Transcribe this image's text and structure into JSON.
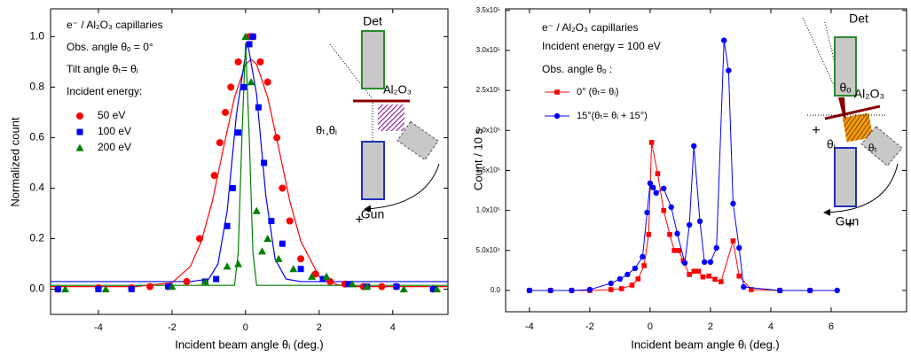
{
  "chart_data": [
    {
      "type": "scatter",
      "legend_title": [
        "e⁻ / Al₂O₃ capillaries",
        "Obs. angle θₒ = 0°",
        "Tilt angle θₜ= θᵢ",
        "Incident energy:"
      ],
      "xlabel": "Incident beam angle θᵢ (deg.)",
      "ylabel": "Normalized count",
      "xlim": [
        -5.3,
        5.5
      ],
      "ylim": [
        -0.1,
        1.11
      ],
      "xticks": [
        -4,
        -2,
        0,
        2,
        4
      ],
      "yticks": [
        {
          "value": 0,
          "label": "0.0"
        },
        {
          "value": 0.2,
          "label": "0.2"
        },
        {
          "value": 0.4,
          "label": "0.4"
        },
        {
          "value": 0.6,
          "label": "0.6"
        },
        {
          "value": 0.8,
          "label": "0.8"
        },
        {
          "value": 1,
          "label": "1.0"
        }
      ],
      "series": [
        {
          "name": "50 eV",
          "color": "#ff0000",
          "marker": "circle",
          "x": [
            -5.1,
            -4.0,
            -3.1,
            -2.6,
            -2.1,
            -1.6,
            -1.25,
            -0.85,
            -0.7,
            -0.55,
            -0.4,
            -0.2,
            0.1,
            0.2,
            0.4,
            0.6,
            0.85,
            1.0,
            1.2,
            1.5,
            1.9,
            2.3,
            2.7,
            3.2,
            3.7,
            4.1,
            5.1
          ],
          "values": [
            0,
            0.005,
            0.005,
            0.01,
            0.01,
            0.03,
            0.2,
            0.45,
            0.58,
            0.7,
            0.8,
            0.9,
            1.0,
            1.0,
            0.9,
            0.82,
            0.6,
            0.4,
            0.27,
            0.12,
            0.06,
            0.03,
            0.02,
            0.01,
            0.01,
            0.01,
            0
          ]
        },
        {
          "name": "100 eV",
          "color": "#0000ff",
          "marker": "square",
          "x": [
            -5.1,
            -4,
            -3.1,
            -2.1,
            -1.1,
            -0.8,
            -0.5,
            -0.35,
            -0.2,
            -0.05,
            0.1,
            0.2,
            0.35,
            0.5,
            0.7,
            1.0,
            1.5,
            2.1,
            2.8,
            3.3,
            4.1,
            5.1
          ],
          "values": [
            0,
            0,
            0,
            0.01,
            0.03,
            0.04,
            0.25,
            0.4,
            0.62,
            0.8,
            0.97,
            1.0,
            0.72,
            0.5,
            0.27,
            0.18,
            0.08,
            0.04,
            0.02,
            0.01,
            0.01,
            0
          ]
        },
        {
          "name": "200 eV",
          "color": "#008000",
          "marker": "triangle",
          "x": [
            -4.9,
            -3.8,
            -2,
            -1.1,
            -0.5,
            -0.2,
            0,
            0.15,
            0.3,
            0.45,
            0.6,
            0.9,
            1.3,
            1.8,
            2.2,
            2.9,
            3.3,
            4.3,
            5.2
          ],
          "values": [
            0,
            0,
            0.01,
            0.03,
            0.09,
            0.1,
            1.0,
            0.82,
            0.31,
            0.15,
            0.2,
            0.12,
            0.08,
            0.05,
            0.05,
            0.02,
            0.01,
            0,
            0
          ]
        }
      ],
      "fits": [
        {
          "color": "#ff0000",
          "x": [
            -5.3,
            -3,
            -2,
            -1.5,
            -1.2,
            -0.9,
            -0.6,
            -0.3,
            0,
            0.15,
            0.3,
            0.6,
            0.9,
            1.2,
            1.5,
            2,
            2.5,
            3,
            5.5
          ],
          "values": [
            0.01,
            0.01,
            0.025,
            0.09,
            0.19,
            0.35,
            0.56,
            0.76,
            0.89,
            0.91,
            0.89,
            0.76,
            0.56,
            0.35,
            0.19,
            0.05,
            0.017,
            0.01,
            0.01
          ]
        },
        {
          "color": "#0000ff",
          "x": [
            -5.3,
            -1.5,
            -1,
            -0.75,
            -0.5,
            -0.25,
            0.05,
            0.3,
            0.55,
            0.8,
            1.1,
            1.5,
            5.5
          ],
          "values": [
            0.03,
            0.03,
            0.04,
            0.1,
            0.31,
            0.69,
            0.98,
            0.77,
            0.37,
            0.12,
            0.04,
            0.03,
            0.03
          ]
        },
        {
          "color": "#008000",
          "x": [
            -5.3,
            -0.3,
            -0.2,
            -0.1,
            0,
            0.1,
            0.2,
            0.3,
            5.5
          ],
          "values": [
            0.015,
            0.015,
            0.145,
            0.6,
            0.975,
            0.6,
            0.145,
            0.015,
            0.015
          ]
        }
      ],
      "diagram_labels": [
        "Det",
        "Al₂O₃",
        "θₜ,θᵢ",
        "Gun",
        "+"
      ]
    },
    {
      "type": "line",
      "legend_title": [
        "e⁻ / Al₂O₃ capillaries",
        "Incident energy = 100 eV",
        "Obs. angle θₒ :"
      ],
      "xlabel": "Incident beam angle θᵢ (deg.)",
      "ylabel": "Count / 10 s",
      "xlim": [
        -4.79,
        8.5
      ],
      "ylim": [
        -26600,
        352000
      ],
      "xticks": [
        -4,
        -2,
        0,
        2,
        4,
        6
      ],
      "yticks": [
        {
          "value": 0,
          "label": "0.0"
        },
        {
          "value": 50000,
          "label": "5.0x10⁴"
        },
        {
          "value": 100000,
          "label": "1.0x10⁵"
        },
        {
          "value": 150000,
          "label": "1.5x10⁵"
        },
        {
          "value": 200000,
          "label": "2.0x10⁵"
        },
        {
          "value": 250000,
          "label": "2.5x10⁵"
        },
        {
          "value": 300000,
          "label": "3.0x10⁵"
        },
        {
          "value": 350000,
          "label": "3.5x10⁵"
        }
      ],
      "series": [
        {
          "name": "0° (θₜ= θᵢ)",
          "color": "#ff0000",
          "marker": "square",
          "x": [
            -4,
            -3.3,
            -2.6,
            -2,
            -1.3,
            -0.95,
            -0.6,
            -0.4,
            -0.2,
            -0.05,
            0.05,
            0.25,
            0.45,
            0.65,
            0.8,
            0.95,
            1.1,
            1.3,
            1.45,
            1.6,
            1.75,
            1.95,
            2.15,
            2.35,
            2.75,
            2.95,
            3.35,
            4.3,
            5.3
          ],
          "values": [
            0,
            0,
            0,
            0,
            1100,
            2200,
            6700,
            14400,
            31000,
            70000,
            185000,
            146000,
            100000,
            70000,
            50000,
            50000,
            37000,
            20000,
            24000,
            24000,
            17000,
            18000,
            14000,
            11000,
            62000,
            18000,
            1100,
            0,
            0
          ]
        },
        {
          "name": "15°(θₜ= θᵢ + 15°)",
          "color": "#0000ff",
          "marker": "circle",
          "x": [
            -4,
            -3.3,
            -2.6,
            -2,
            -1.3,
            -1,
            -0.75,
            -0.5,
            -0.25,
            -0.1,
            0,
            0.1,
            0.2,
            0.45,
            0.7,
            0.9,
            1.15,
            1.3,
            1.45,
            1.65,
            1.8,
            2,
            2.2,
            2.45,
            2.6,
            2.75,
            2.95,
            3.1,
            4.3,
            5.3,
            6.2
          ],
          "values": [
            0,
            0,
            0,
            1100,
            8900,
            14400,
            20000,
            27700,
            42100,
            97500,
            134000,
            128600,
            121900,
            127500,
            104200,
            71000,
            34400,
            82000,
            180600,
            86500,
            35500,
            35500,
            53200,
            312600,
            274900,
            108600,
            53200,
            4400,
            0,
            0,
            0
          ]
        }
      ],
      "diagram_labels": [
        "Det",
        "θₒ",
        "Al₂O₃",
        "θᵢ",
        "θₜ",
        "Gun",
        "+",
        "+"
      ]
    }
  ]
}
